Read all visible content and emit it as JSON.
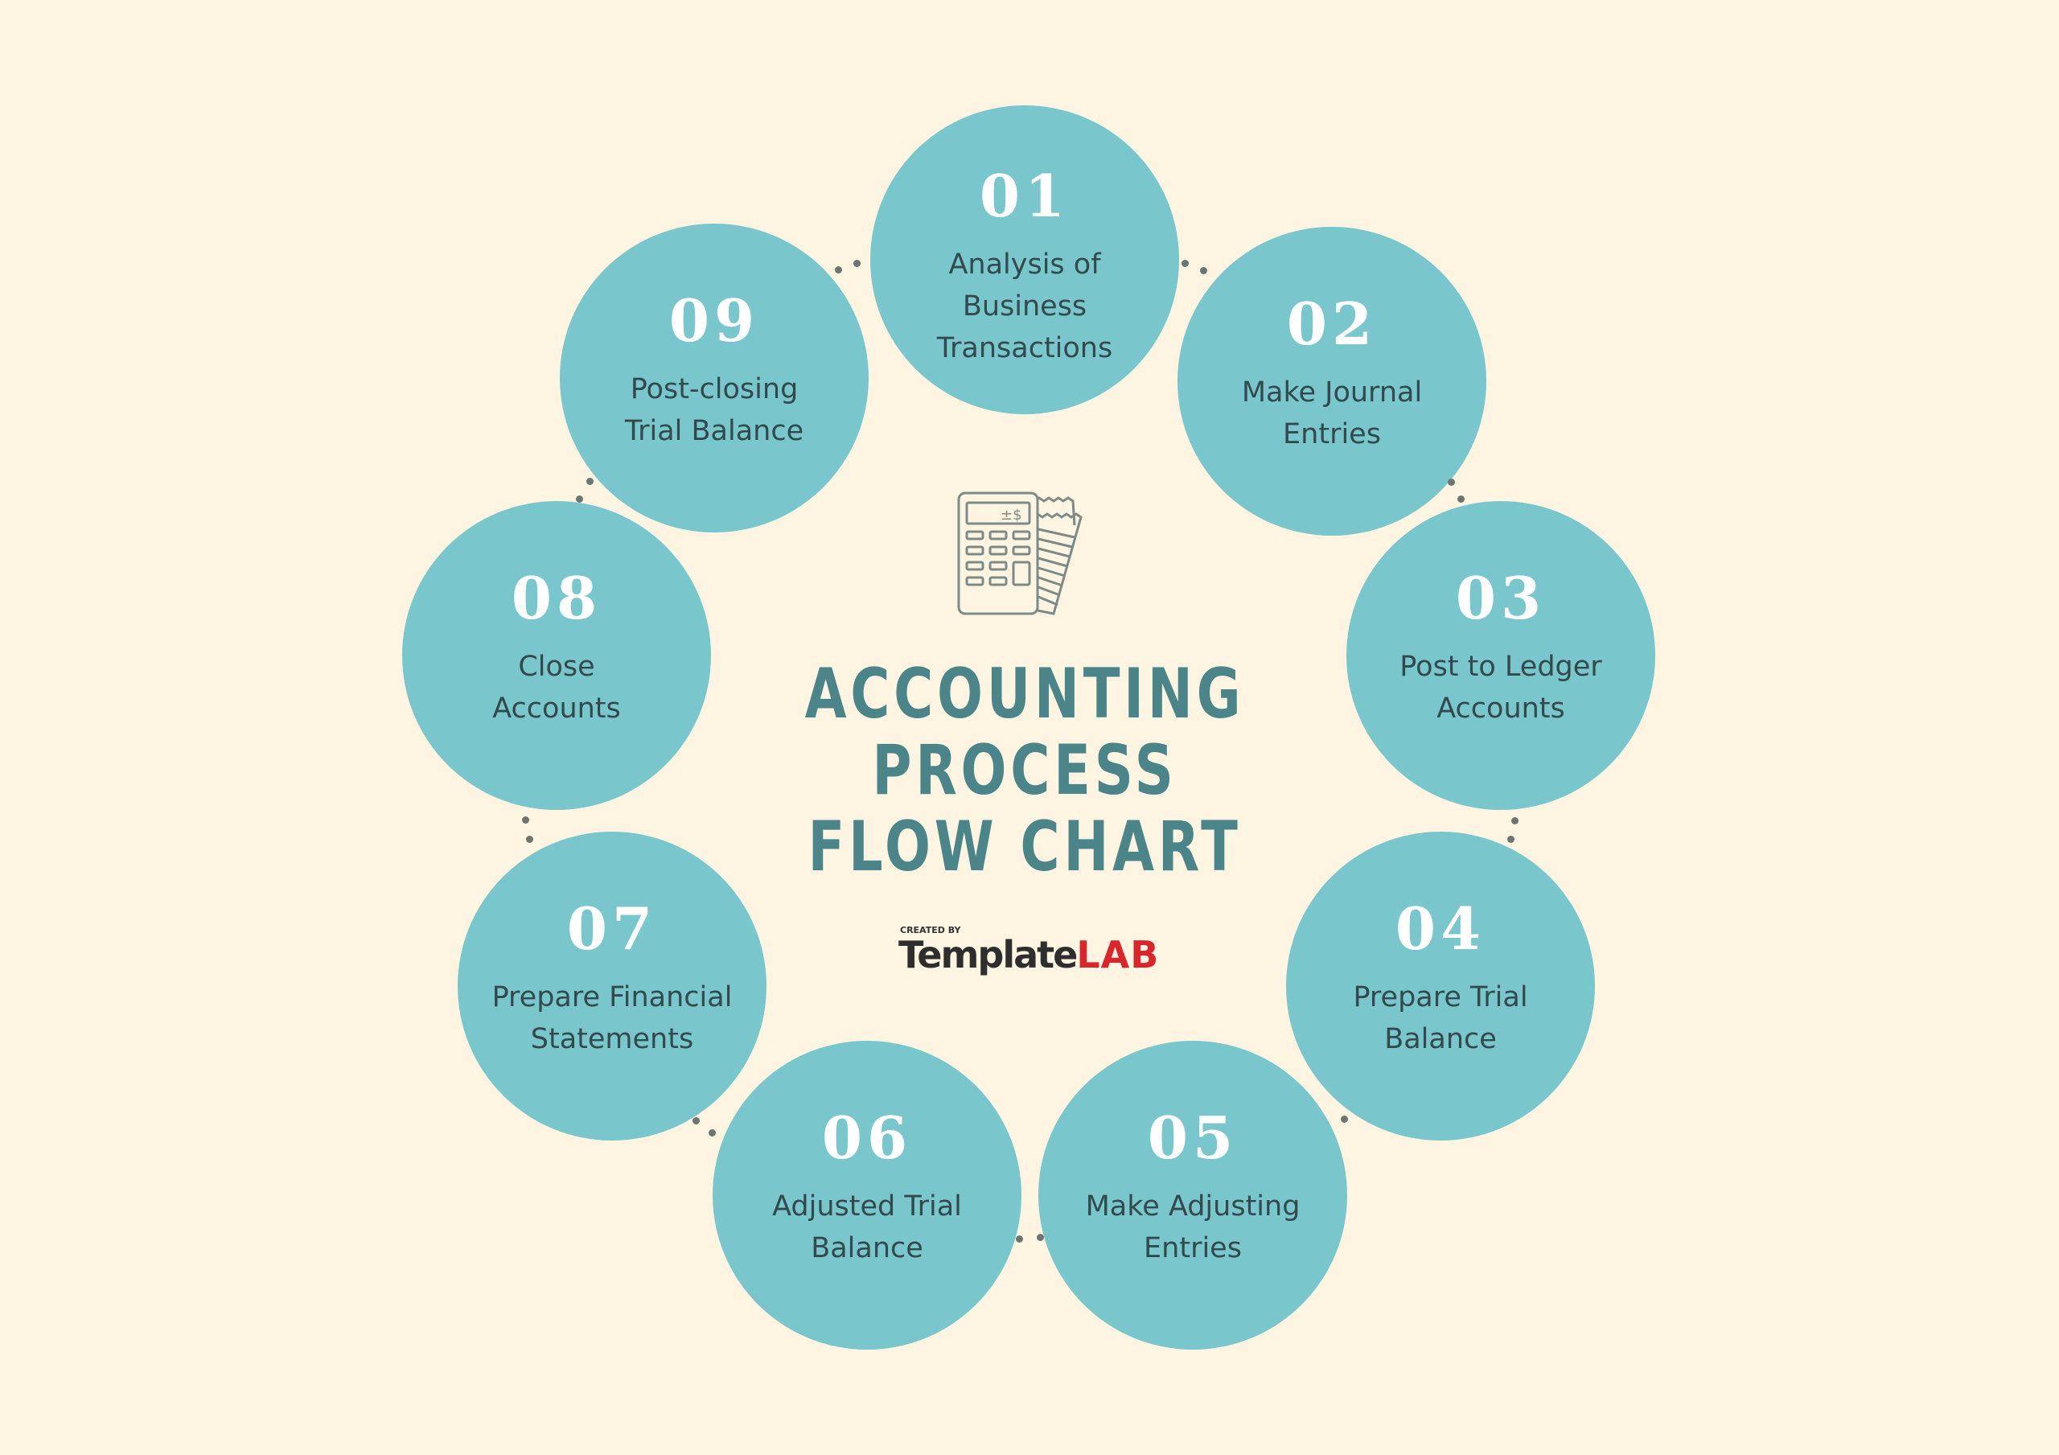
{
  "title": {
    "line1": "ACCOUNTING",
    "line2": "PROCESS",
    "line3": "FLOW CHART",
    "color": "#4b8589"
  },
  "icon": "calculator-receipt-icon",
  "logo": {
    "created_by": "CREATED BY",
    "brand_a": "Template",
    "brand_b": "LAB"
  },
  "colors": {
    "background": "#fdf5e2",
    "circle": "#79c7cc",
    "number": "#ffffff",
    "label": "#324a4e",
    "connector_dots": "#6e7470"
  },
  "steps": [
    {
      "number": "01",
      "label": "Analysis of\nBusiness\nTransactions"
    },
    {
      "number": "02",
      "label": "Make Journal\nEntries"
    },
    {
      "number": "03",
      "label": "Post to Ledger\nAccounts"
    },
    {
      "number": "04",
      "label": "Prepare Trial\nBalance"
    },
    {
      "number": "05",
      "label": "Make Adjusting\nEntries"
    },
    {
      "number": "06",
      "label": "Adjusted Trial\nBalance"
    },
    {
      "number": "07",
      "label": "Prepare Financial\nStatements"
    },
    {
      "number": "08",
      "label": "Close\nAccounts"
    },
    {
      "number": "09",
      "label": "Post-closing\nTrial Balance"
    }
  ]
}
